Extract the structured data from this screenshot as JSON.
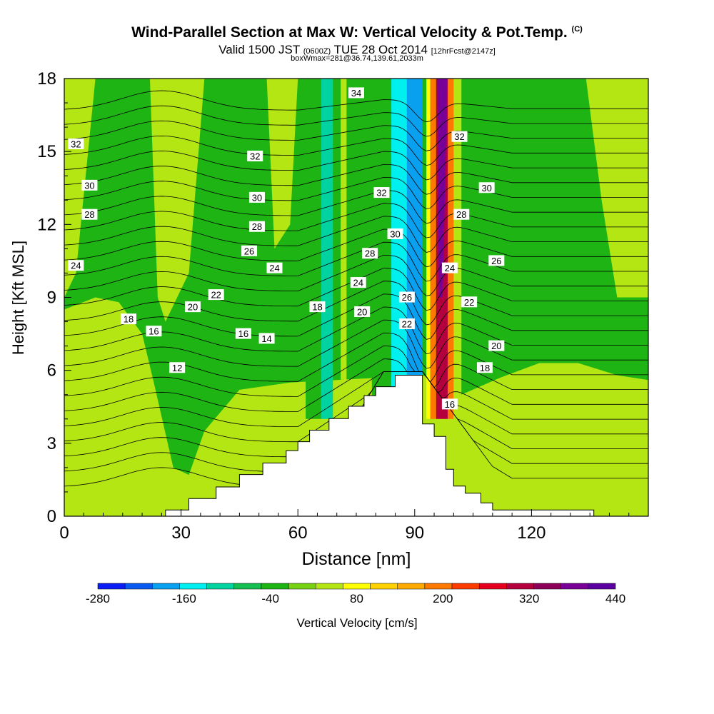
{
  "title": {
    "main": "Wind-Parallel Section at Max W: Vertical Velocity & Pot.Temp.",
    "main_suffix": "(C)",
    "valid_prefix": "Valid 1500 JST",
    "valid_zulu": "(0600Z)",
    "valid_date": "TUE 28 Oct 2014",
    "fcst": "[12hrFcst@2147z]",
    "box": "boxWmax=281@36.74,139.61,2033m"
  },
  "colorbar": {
    "title": "Vertical Velocity [cm/s]",
    "tick_labels": [
      "-280",
      "-160",
      "-40",
      "80",
      "200",
      "320",
      "440"
    ],
    "colors": [
      "#0a1ef5",
      "#0a5af0",
      "#0aa0f0",
      "#00f0f0",
      "#00d2a0",
      "#14be50",
      "#1eb414",
      "#78d214",
      "#b4e614",
      "#ffff00",
      "#ffd200",
      "#ffaa00",
      "#ff7800",
      "#ff3c00",
      "#e6001e",
      "#b4003c",
      "#8c005a",
      "#780096",
      "#5a00a0"
    ]
  },
  "chart_data": {
    "type": "heatmap",
    "xlabel": "Distance [nm]",
    "ylabel": "Height [Kft MSL]",
    "xlim": [
      0,
      150
    ],
    "ylim": [
      0,
      18
    ],
    "xticks": [
      0,
      30,
      60,
      90,
      120
    ],
    "yticks": [
      0,
      3,
      6,
      9,
      12,
      15,
      18
    ],
    "field": "Vertical Velocity [cm/s]",
    "range": [
      -280,
      440
    ],
    "max_w": 281,
    "vertical_velocity_bands_cm_s": [
      {
        "x_start": 0,
        "x_end": 22,
        "value": -20
      },
      {
        "x_start": 22,
        "x_end": 60,
        "value": -10
      },
      {
        "x_start": 62,
        "x_end": 66,
        "value": -40
      },
      {
        "x_start": 66,
        "x_end": 69,
        "value": -100
      },
      {
        "x_start": 71,
        "x_end": 72.5,
        "value": 60
      },
      {
        "x_start": 79,
        "x_end": 84,
        "value": -40
      },
      {
        "x_start": 84,
        "x_end": 88,
        "value": -160
      },
      {
        "x_start": 88,
        "x_end": 92,
        "value": -200
      },
      {
        "x_start": 93,
        "x_end": 94,
        "value": 80
      },
      {
        "x_start": 94,
        "x_end": 95.5,
        "value": 200
      },
      {
        "x_start": 95.5,
        "x_end": 98.5,
        "value": 320
      },
      {
        "x_start": 98.5,
        "x_end": 100,
        "value": 200
      },
      {
        "x_start": 100,
        "x_end": 102,
        "value": 60
      },
      {
        "x_start": 102,
        "x_end": 150,
        "value": -20
      }
    ],
    "theta_labels": [
      {
        "x": 3,
        "y": 15.3,
        "label": "32"
      },
      {
        "x": 6.5,
        "y": 13.6,
        "label": "30"
      },
      {
        "x": 6.5,
        "y": 12.4,
        "label": "28"
      },
      {
        "x": 3,
        "y": 10.3,
        "label": "24"
      },
      {
        "x": 16.5,
        "y": 8.1,
        "label": "18"
      },
      {
        "x": 23,
        "y": 7.6,
        "label": "16"
      },
      {
        "x": 29,
        "y": 6.1,
        "label": "12"
      },
      {
        "x": 33,
        "y": 8.6,
        "label": "20"
      },
      {
        "x": 39,
        "y": 9.1,
        "label": "22"
      },
      {
        "x": 46,
        "y": 7.5,
        "label": "16"
      },
      {
        "x": 52,
        "y": 7.3,
        "label": "14"
      },
      {
        "x": 49,
        "y": 14.8,
        "label": "32"
      },
      {
        "x": 49.5,
        "y": 13.1,
        "label": "30"
      },
      {
        "x": 49.5,
        "y": 11.9,
        "label": "28"
      },
      {
        "x": 47.5,
        "y": 10.9,
        "label": "26"
      },
      {
        "x": 54,
        "y": 10.2,
        "label": "24"
      },
      {
        "x": 65,
        "y": 8.6,
        "label": "18"
      },
      {
        "x": 75,
        "y": 17.4,
        "label": "34"
      },
      {
        "x": 81.5,
        "y": 13.3,
        "label": "32"
      },
      {
        "x": 85,
        "y": 11.6,
        "label": "30"
      },
      {
        "x": 78.5,
        "y": 10.8,
        "label": "28"
      },
      {
        "x": 75.5,
        "y": 9.6,
        "label": "24"
      },
      {
        "x": 76.5,
        "y": 8.4,
        "label": "20"
      },
      {
        "x": 88,
        "y": 9.0,
        "label": "26"
      },
      {
        "x": 88,
        "y": 7.9,
        "label": "22"
      },
      {
        "x": 101.5,
        "y": 15.6,
        "label": "32"
      },
      {
        "x": 108.5,
        "y": 13.5,
        "label": "30"
      },
      {
        "x": 102,
        "y": 12.4,
        "label": "28"
      },
      {
        "x": 99,
        "y": 10.2,
        "label": "24"
      },
      {
        "x": 111,
        "y": 10.5,
        "label": "26"
      },
      {
        "x": 104,
        "y": 8.8,
        "label": "22"
      },
      {
        "x": 111,
        "y": 7.0,
        "label": "20"
      },
      {
        "x": 108,
        "y": 6.1,
        "label": "18"
      },
      {
        "x": 99,
        "y": 4.6,
        "label": "16"
      }
    ]
  }
}
